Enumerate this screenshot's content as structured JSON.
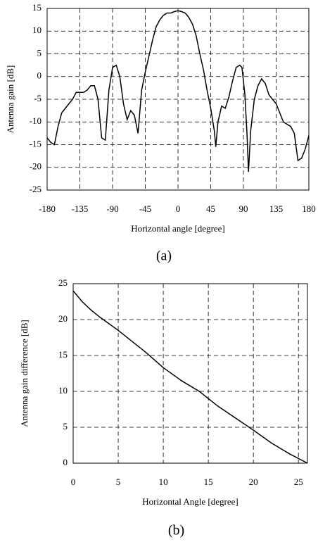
{
  "chart_data": [
    {
      "type": "line",
      "caption": "(a)",
      "x_label": "Horizontal angle [degree]",
      "y_label": "Antenna gain [dB]",
      "x": [
        -180,
        -175,
        -170,
        -165,
        -160,
        -155,
        -150,
        -145,
        -140,
        -135,
        -130,
        -125,
        -120,
        -115,
        -110,
        -105,
        -100,
        -95,
        -90,
        -85,
        -80,
        -75,
        -70,
        -65,
        -60,
        -55,
        -50,
        -45,
        -40,
        -35,
        -30,
        -25,
        -20,
        -15,
        -10,
        -5,
        0,
        5,
        10,
        15,
        20,
        25,
        30,
        35,
        40,
        45,
        50,
        52,
        55,
        60,
        65,
        70,
        75,
        80,
        85,
        88,
        90,
        92,
        95,
        97,
        100,
        105,
        110,
        115,
        120,
        125,
        130,
        135,
        140,
        145,
        150,
        155,
        160,
        165,
        170,
        175,
        180
      ],
      "values": [
        -13.5,
        -14.5,
        -15,
        -11,
        -8,
        -7,
        -6,
        -5,
        -3.5,
        -3.5,
        -3.5,
        -3,
        -2,
        -2,
        -5,
        -13.5,
        -14,
        -3,
        2,
        2.5,
        0,
        -6,
        -9.5,
        -7.5,
        -8.5,
        -12.5,
        -3,
        1,
        4.5,
        8,
        11,
        12.5,
        13.5,
        14,
        14,
        14.3,
        14.5,
        14.3,
        14,
        13,
        11.5,
        9,
        5,
        1.5,
        -3,
        -7,
        -12,
        -15.5,
        -10,
        -6.5,
        -7,
        -4.5,
        -1,
        2,
        2.5,
        2,
        -1,
        -4,
        -13,
        -21,
        -12,
        -5,
        -2,
        -0.5,
        -1.5,
        -4,
        -5,
        -6,
        -8,
        -10,
        -10.5,
        -11,
        -12.5,
        -18.5,
        -18,
        -16,
        -13
      ],
      "color": "#000000",
      "grid": true,
      "xlim": [
        -180,
        180
      ],
      "xticks": [
        -180,
        -135,
        -90,
        -45,
        0,
        45,
        90,
        135,
        180
      ],
      "ylim": [
        -25,
        15
      ],
      "yticks": [
        -25,
        -20,
        -15,
        -10,
        -5,
        0,
        5,
        10,
        15
      ]
    },
    {
      "type": "line",
      "caption": "(b)",
      "x_label": "Horizontal Angle [degree]",
      "y_label": "Antenna gain difference [dB]",
      "x": [
        0,
        1,
        2,
        3,
        5,
        8,
        10,
        12,
        14,
        16,
        18,
        20,
        22,
        24,
        26
      ],
      "values": [
        24,
        22.5,
        21.3,
        20.3,
        18.5,
        15.5,
        13.3,
        11.5,
        10,
        8,
        6.3,
        4.6,
        2.8,
        1.3,
        0
      ],
      "color": "#000000",
      "grid": true,
      "xlim": [
        0,
        26
      ],
      "xticks": [
        0,
        5,
        10,
        15,
        20,
        25
      ],
      "ylim": [
        0,
        25
      ],
      "yticks": [
        0,
        5,
        10,
        15,
        20,
        25
      ]
    }
  ]
}
